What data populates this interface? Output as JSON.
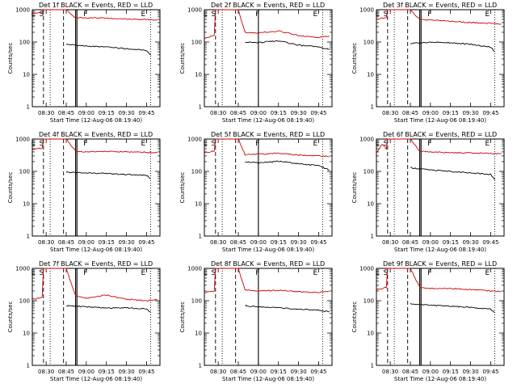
{
  "figure": {
    "type": "multi-panel line chart",
    "y_scale": "log",
    "ylim": [
      1,
      1000
    ],
    "yticks": [
      "1",
      "10",
      "100",
      "1000"
    ],
    "xticks": [
      "08:30",
      "08:45",
      "09:00",
      "09:15",
      "09:30",
      "09:45"
    ],
    "series_colors": {
      "events": "#000000",
      "lld": "#cc0000"
    },
    "grid": false
  },
  "chart_data": [
    {
      "type": "line",
      "title": "Det 1f BLACK = Events, RED = LLD",
      "xlabel": "Start Time (12-Aug-06 08:19:40)",
      "ylabel": "Counts/sec",
      "x_range": [
        "08:19:40",
        "09:55"
      ],
      "ylim": [
        1,
        1000
      ],
      "xticks": [
        "08:30",
        "08:45",
        "09:00",
        "09:15",
        "09:30",
        "09:45"
      ],
      "markers": [
        {
          "label": "E",
          "x": "08:20"
        },
        {
          "label": "S",
          "x": "08:26"
        },
        {
          "label": "F",
          "x": "08:59"
        },
        {
          "label": "E",
          "x": "09:42"
        }
      ],
      "dashed_lines": [
        "08:28",
        "08:43"
      ],
      "dotted_lines": [
        "08:33",
        "09:48"
      ],
      "solid_lines": [
        "08:52",
        "08:53"
      ],
      "series": [
        {
          "name": "LLD",
          "color": "#cc0000",
          "x": [
            "08:20",
            "08:27",
            "08:28",
            "08:42",
            "08:45",
            "08:52",
            "09:00",
            "09:15",
            "09:30",
            "09:45",
            "09:53"
          ],
          "y": [
            780,
            820,
            1000,
            1000,
            1000,
            560,
            560,
            540,
            520,
            500,
            480
          ]
        },
        {
          "name": "Events",
          "color": "#000000",
          "x": [
            "08:45",
            "09:00",
            "09:15",
            "09:30",
            "09:45",
            "09:48"
          ],
          "y": [
            85,
            75,
            70,
            62,
            55,
            40
          ]
        }
      ]
    },
    {
      "type": "line",
      "title": "Det 2f BLACK = Events, RED = LLD",
      "xlabel": "Start Time (12-Aug-06 08:19:40)",
      "ylabel": "Counts/sec",
      "x_range": [
        "08:19:40",
        "09:55"
      ],
      "ylim": [
        1,
        1000
      ],
      "xticks": [
        "08:30",
        "08:45",
        "09:00",
        "09:15",
        "09:30",
        "09:45"
      ],
      "markers": [
        {
          "label": "E",
          "x": "08:20"
        },
        {
          "label": "S",
          "x": "08:26"
        },
        {
          "label": "F",
          "x": "08:59"
        },
        {
          "label": "E",
          "x": "09:42"
        }
      ],
      "dashed_lines": [
        "08:28",
        "08:43"
      ],
      "dotted_lines": [
        "08:33",
        "09:48"
      ],
      "solid_lines": [
        "09:00"
      ],
      "series": [
        {
          "name": "LLD",
          "color": "#cc0000",
          "x": [
            "08:20",
            "08:27",
            "08:28",
            "08:42",
            "08:45",
            "08:50",
            "09:00",
            "09:15",
            "09:30",
            "09:45",
            "09:53"
          ],
          "y": [
            130,
            160,
            1000,
            1000,
            1000,
            200,
            190,
            220,
            160,
            140,
            150
          ]
        },
        {
          "name": "Events",
          "color": "#000000",
          "x": [
            "08:50",
            "09:00",
            "09:15",
            "09:30",
            "09:45",
            "09:53"
          ],
          "y": [
            100,
            95,
            110,
            80,
            70,
            60
          ]
        }
      ]
    },
    {
      "type": "line",
      "title": "Det 3f BLACK = Events, RED = LLD",
      "xlabel": "Start Time (12-Aug-06 08:19:40)",
      "ylabel": "Counts/sec",
      "x_range": [
        "08:19:40",
        "09:55"
      ],
      "ylim": [
        1,
        1000
      ],
      "xticks": [
        "08:30",
        "08:45",
        "09:00",
        "09:15",
        "09:30",
        "09:45"
      ],
      "markers": [
        {
          "label": "E",
          "x": "08:20"
        },
        {
          "label": "S",
          "x": "08:26"
        },
        {
          "label": "F",
          "x": "08:59"
        },
        {
          "label": "E",
          "x": "09:42"
        }
      ],
      "dashed_lines": [
        "08:28",
        "08:43"
      ],
      "dotted_lines": [
        "08:33",
        "09:48"
      ],
      "solid_lines": [
        "08:52",
        "08:53"
      ],
      "series": [
        {
          "name": "LLD",
          "color": "#cc0000",
          "x": [
            "08:20",
            "08:27",
            "08:28",
            "08:42",
            "08:45",
            "08:52",
            "09:00",
            "09:15",
            "09:30",
            "09:45",
            "09:53"
          ],
          "y": [
            520,
            560,
            1000,
            1000,
            1000,
            500,
            480,
            440,
            400,
            380,
            360
          ]
        },
        {
          "name": "Events",
          "color": "#000000",
          "x": [
            "08:45",
            "09:00",
            "09:15",
            "09:30",
            "09:45",
            "09:48"
          ],
          "y": [
            90,
            100,
            95,
            85,
            70,
            50
          ]
        }
      ]
    },
    {
      "type": "line",
      "title": "Det 4f BLACK = Events, RED = LLD",
      "xlabel": "Start Time (12-Aug-06 08:19:40)",
      "ylabel": "Counts/sec",
      "x_range": [
        "08:19:40",
        "09:55"
      ],
      "ylim": [
        1,
        1000
      ],
      "xticks": [
        "08:30",
        "08:45",
        "09:00",
        "09:15",
        "09:30",
        "09:45"
      ],
      "markers": [
        {
          "label": "E",
          "x": "08:20"
        },
        {
          "label": "S",
          "x": "08:26"
        },
        {
          "label": "F",
          "x": "08:59"
        },
        {
          "label": "E",
          "x": "09:42"
        }
      ],
      "dashed_lines": [
        "08:28",
        "08:43"
      ],
      "dotted_lines": [
        "08:33",
        "09:48"
      ],
      "solid_lines": [
        "08:52",
        "08:53"
      ],
      "series": [
        {
          "name": "LLD",
          "color": "#cc0000",
          "x": [
            "08:20",
            "08:27",
            "08:28",
            "08:42",
            "08:45",
            "08:52",
            "09:00",
            "09:15",
            "09:30",
            "09:45",
            "09:53"
          ],
          "y": [
            480,
            520,
            1000,
            1000,
            1000,
            420,
            400,
            420,
            400,
            390,
            380
          ]
        },
        {
          "name": "Events",
          "color": "#000000",
          "x": [
            "08:45",
            "09:00",
            "09:15",
            "09:30",
            "09:45",
            "09:48"
          ],
          "y": [
            95,
            90,
            85,
            80,
            75,
            60
          ]
        }
      ]
    },
    {
      "type": "line",
      "title": "Det 5f BLACK = Events, RED = LLD",
      "xlabel": "Start Time (12-Aug-06 08:19:40)",
      "ylabel": "Counts/sec",
      "x_range": [
        "08:19:40",
        "09:55"
      ],
      "ylim": [
        1,
        1000
      ],
      "xticks": [
        "08:30",
        "08:45",
        "09:00",
        "09:15",
        "09:30",
        "09:45"
      ],
      "markers": [
        {
          "label": "E",
          "x": "08:20"
        },
        {
          "label": "S",
          "x": "08:26"
        },
        {
          "label": "F",
          "x": "08:59"
        },
        {
          "label": "E",
          "x": "09:42"
        }
      ],
      "dashed_lines": [
        "08:28",
        "08:43"
      ],
      "dotted_lines": [
        "08:33",
        "09:48"
      ],
      "solid_lines": [
        "09:00"
      ],
      "series": [
        {
          "name": "LLD",
          "color": "#cc0000",
          "x": [
            "08:20",
            "08:27",
            "08:28",
            "08:42",
            "08:45",
            "08:50",
            "09:00",
            "09:15",
            "09:30",
            "09:45",
            "09:53"
          ],
          "y": [
            380,
            420,
            1000,
            1000,
            1000,
            330,
            340,
            360,
            320,
            300,
            290
          ]
        },
        {
          "name": "Events",
          "color": "#000000",
          "x": [
            "08:50",
            "09:00",
            "09:15",
            "09:30",
            "09:45",
            "09:53"
          ],
          "y": [
            200,
            180,
            210,
            170,
            150,
            110
          ]
        }
      ]
    },
    {
      "type": "line",
      "title": "Det 6f BLACK = Events, RED = LLD",
      "xlabel": "Start Time (12-Aug-06 08:19:40)",
      "ylabel": "Counts/sec",
      "x_range": [
        "08:19:40",
        "09:55"
      ],
      "ylim": [
        1,
        1000
      ],
      "xticks": [
        "08:30",
        "08:45",
        "09:00",
        "09:15",
        "09:30",
        "09:45"
      ],
      "markers": [
        {
          "label": "E",
          "x": "08:20"
        },
        {
          "label": "S",
          "x": "08:26"
        },
        {
          "label": "F",
          "x": "08:59"
        },
        {
          "label": "E",
          "x": "09:42"
        }
      ],
      "dashed_lines": [
        "08:28",
        "08:43"
      ],
      "dotted_lines": [
        "08:33",
        "09:48"
      ],
      "solid_lines": [
        "08:52",
        "08:53"
      ],
      "series": [
        {
          "name": "LLD",
          "color": "#cc0000",
          "x": [
            "08:20",
            "08:24",
            "08:27",
            "08:28",
            "08:42",
            "08:45",
            "08:52",
            "09:00",
            "09:15",
            "09:30",
            "09:45",
            "09:53"
          ],
          "y": [
            400,
            700,
            500,
            1000,
            1000,
            1000,
            420,
            400,
            380,
            370,
            360,
            350
          ]
        },
        {
          "name": "Events",
          "color": "#000000",
          "x": [
            "08:45",
            "09:00",
            "09:15",
            "09:30",
            "09:45",
            "09:48"
          ],
          "y": [
            130,
            110,
            100,
            90,
            80,
            55
          ]
        }
      ]
    },
    {
      "type": "line",
      "title": "Det 7f BLACK = Events, RED = LLD",
      "xlabel": "Start Time (12-Aug-06 08:19:40)",
      "ylabel": "Counts/sec",
      "x_range": [
        "08:19:40",
        "09:55"
      ],
      "ylim": [
        1,
        1000
      ],
      "xticks": [
        "08:30",
        "08:45",
        "09:00",
        "09:15",
        "09:30",
        "09:45"
      ],
      "markers": [
        {
          "label": "E",
          "x": "08:20"
        },
        {
          "label": "S",
          "x": "08:26"
        },
        {
          "label": "F",
          "x": "08:59"
        },
        {
          "label": "E",
          "x": "09:42"
        }
      ],
      "dashed_lines": [
        "08:28",
        "08:43"
      ],
      "dotted_lines": [
        "08:33",
        "09:48"
      ],
      "solid_lines": [
        "08:52",
        "08:53"
      ],
      "series": [
        {
          "name": "LLD",
          "color": "#cc0000",
          "x": [
            "08:20",
            "08:27",
            "08:28",
            "08:42",
            "08:45",
            "08:52",
            "09:00",
            "09:15",
            "09:30",
            "09:45",
            "09:53"
          ],
          "y": [
            110,
            130,
            1000,
            1000,
            1000,
            140,
            120,
            150,
            110,
            100,
            110
          ]
        },
        {
          "name": "Events",
          "color": "#000000",
          "x": [
            "08:45",
            "09:00",
            "09:15",
            "09:30",
            "09:45",
            "09:48"
          ],
          "y": [
            70,
            65,
            60,
            60,
            55,
            45
          ]
        }
      ]
    },
    {
      "type": "line",
      "title": "Det 8f BLACK = Events, RED = LLD",
      "xlabel": "Start Time (12-Aug-06 08:19:40)",
      "ylabel": "Counts/sec",
      "x_range": [
        "08:19:40",
        "09:55"
      ],
      "ylim": [
        1,
        1000
      ],
      "xticks": [
        "08:30",
        "08:45",
        "09:00",
        "09:15",
        "09:30",
        "09:45"
      ],
      "markers": [
        {
          "label": "E",
          "x": "08:20"
        },
        {
          "label": "S",
          "x": "08:26"
        },
        {
          "label": "F",
          "x": "08:59"
        },
        {
          "label": "E",
          "x": "09:42"
        }
      ],
      "dashed_lines": [
        "08:28",
        "08:43"
      ],
      "dotted_lines": [
        "08:33",
        "09:48"
      ],
      "solid_lines": [
        "09:00"
      ],
      "series": [
        {
          "name": "LLD",
          "color": "#cc0000",
          "x": [
            "08:20",
            "08:27",
            "08:28",
            "08:42",
            "08:45",
            "08:50",
            "09:00",
            "09:15",
            "09:30",
            "09:45",
            "09:53"
          ],
          "y": [
            180,
            200,
            1000,
            1000,
            1000,
            220,
            200,
            210,
            190,
            180,
            200
          ]
        },
        {
          "name": "Events",
          "color": "#000000",
          "x": [
            "08:50",
            "09:00",
            "09:15",
            "09:30",
            "09:45",
            "09:53"
          ],
          "y": [
            70,
            65,
            60,
            55,
            50,
            45
          ]
        }
      ]
    },
    {
      "type": "line",
      "title": "Det 9f BLACK = Events, RED = LLD",
      "xlabel": "Start Time (12-Aug-06 08:19:40)",
      "ylabel": "Counts/sec",
      "x_range": [
        "08:19:40",
        "09:55"
      ],
      "ylim": [
        1,
        1000
      ],
      "xticks": [
        "08:30",
        "08:45",
        "09:00",
        "09:15",
        "09:30",
        "09:45"
      ],
      "markers": [
        {
          "label": "E",
          "x": "08:20"
        },
        {
          "label": "S",
          "x": "08:26"
        },
        {
          "label": "F",
          "x": "08:59"
        },
        {
          "label": "E",
          "x": "09:42"
        }
      ],
      "dashed_lines": [
        "08:28",
        "08:43"
      ],
      "dotted_lines": [
        "08:33",
        "09:48"
      ],
      "solid_lines": [
        "08:52",
        "08:53"
      ],
      "series": [
        {
          "name": "LLD",
          "color": "#cc0000",
          "x": [
            "08:20",
            "08:27",
            "08:28",
            "08:42",
            "08:45",
            "08:52",
            "09:00",
            "09:15",
            "09:30",
            "09:45",
            "09:53"
          ],
          "y": [
            220,
            260,
            1000,
            1000,
            1000,
            260,
            240,
            240,
            220,
            200,
            190
          ]
        },
        {
          "name": "Events",
          "color": "#000000",
          "x": [
            "08:45",
            "09:00",
            "09:15",
            "09:30",
            "09:45",
            "09:48"
          ],
          "y": [
            80,
            72,
            68,
            62,
            55,
            42
          ]
        }
      ]
    }
  ]
}
